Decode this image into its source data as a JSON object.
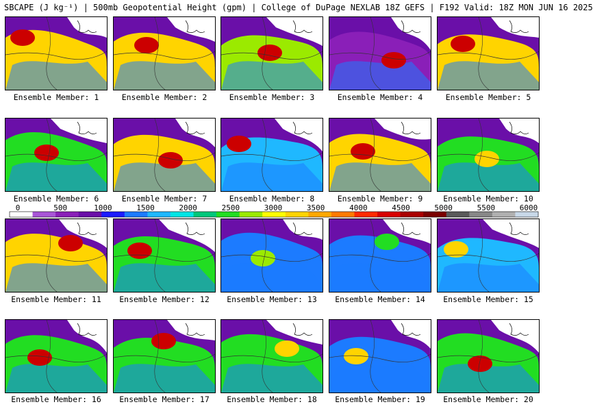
{
  "title": "SBCAPE (J kg⁻¹) | 500mb Geopotential Height (gpm) | College of DuPage NEXLAB 18Z GEFS | F192 Valid: 18Z MON JUN 16 2025",
  "colorbar": {
    "tick_labels": [
      "0",
      "500",
      "1000",
      "1500",
      "2000",
      "2500",
      "3000",
      "3500",
      "4000",
      "4500",
      "5000",
      "5500",
      "6000"
    ],
    "colors": [
      "#ffffff",
      "#a855d6",
      "#8a1fb8",
      "#6a0fa8",
      "#1c1cff",
      "#1c7bff",
      "#1fb8ff",
      "#00e5e5",
      "#00c77a",
      "#22dd22",
      "#9bea00",
      "#ffff00",
      "#ffd400",
      "#ffa800",
      "#ff7a00",
      "#ff2a00",
      "#d80000",
      "#aa0000",
      "#7a0000",
      "#5a5a5a",
      "#888888",
      "#b0b0b0",
      "#c8d8e8"
    ]
  },
  "members": [
    {
      "label": "Ensemble Member: 1",
      "dominant": "#ffd400",
      "hot": "#cc0000",
      "blank": "#ffffff"
    },
    {
      "label": "Ensemble Member: 2",
      "dominant": "#ffd400",
      "hot": "#cc0000",
      "blank": "#ffffff"
    },
    {
      "label": "Ensemble Member: 3",
      "dominant": "#9bea00",
      "hot": "#cc0000",
      "blank": "#ffffff"
    },
    {
      "label": "Ensemble Member: 4",
      "dominant": "#8a1fb8",
      "hot": "#cc0000",
      "blank": "#ffffff"
    },
    {
      "label": "Ensemble Member: 5",
      "dominant": "#ffd400",
      "hot": "#cc0000",
      "blank": "#ffffff"
    },
    {
      "label": "Ensemble Member: 6",
      "dominant": "#22dd22",
      "hot": "#cc0000",
      "blank": "#ffffff"
    },
    {
      "label": "Ensemble Member: 7",
      "dominant": "#ffd400",
      "hot": "#cc0000",
      "blank": "#ffffff"
    },
    {
      "label": "Ensemble Member: 8",
      "dominant": "#1fb8ff",
      "hot": "#cc0000",
      "blank": "#ffffff"
    },
    {
      "label": "Ensemble Member: 9",
      "dominant": "#ffd400",
      "hot": "#cc0000",
      "blank": "#ffffff"
    },
    {
      "label": "Ensemble Member: 10",
      "dominant": "#22dd22",
      "hot": "#ffd400",
      "blank": "#ffffff"
    },
    {
      "label": "Ensemble Member: 11",
      "dominant": "#ffd400",
      "hot": "#cc0000",
      "blank": "#ffffff"
    },
    {
      "label": "Ensemble Member: 12",
      "dominant": "#22dd22",
      "hot": "#cc0000",
      "blank": "#ffffff"
    },
    {
      "label": "Ensemble Member: 13",
      "dominant": "#1c7bff",
      "hot": "#9bea00",
      "blank": "#ffffff"
    },
    {
      "label": "Ensemble Member: 14",
      "dominant": "#1c7bff",
      "hot": "#22dd22",
      "blank": "#ffffff"
    },
    {
      "label": "Ensemble Member: 15",
      "dominant": "#1fb8ff",
      "hot": "#ffd400",
      "blank": "#ffffff"
    },
    {
      "label": "Ensemble Member: 16",
      "dominant": "#22dd22",
      "hot": "#cc0000",
      "blank": "#ffffff"
    },
    {
      "label": "Ensemble Member: 17",
      "dominant": "#22dd22",
      "hot": "#cc0000",
      "blank": "#ffffff"
    },
    {
      "label": "Ensemble Member: 18",
      "dominant": "#22dd22",
      "hot": "#ffd400",
      "blank": "#ffffff"
    },
    {
      "label": "Ensemble Member: 19",
      "dominant": "#1c7bff",
      "hot": "#ffd400",
      "blank": "#ffffff"
    },
    {
      "label": "Ensemble Member: 20",
      "dominant": "#22dd22",
      "hot": "#cc0000",
      "blank": "#ffffff"
    }
  ]
}
